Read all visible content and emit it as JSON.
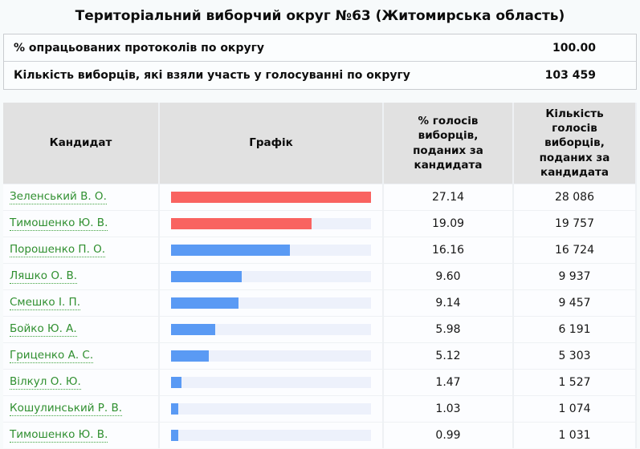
{
  "page": {
    "title": "Територіальний виборчий округ №63 (Житомирська область)"
  },
  "summary": {
    "rows": [
      {
        "label": "% опрацьованих протоколів по округу",
        "value": "100.00"
      },
      {
        "label": "Кількість виборців, які взяли участь у голосуванні по округу",
        "value": "103 459"
      }
    ]
  },
  "results_table": {
    "columns": [
      {
        "label": "Кандидат"
      },
      {
        "label": "Графік"
      },
      {
        "label": "% голосів виборців, поданих за кандидата"
      },
      {
        "label": "Кількість голосів виборців, поданих за кандидата"
      }
    ],
    "rows": [
      {
        "candidate": "Зеленський В. О.",
        "percent": "27.14",
        "votes": "28 086",
        "bar_color": "red"
      },
      {
        "candidate": "Тимошенко Ю. В.",
        "percent": "19.09",
        "votes": "19 757",
        "bar_color": "red"
      },
      {
        "candidate": "Порошенко П. О.",
        "percent": "16.16",
        "votes": "16 724",
        "bar_color": "blue"
      },
      {
        "candidate": "Ляшко О. В.",
        "percent": "9.60",
        "votes": "9 937",
        "bar_color": "blue"
      },
      {
        "candidate": "Смешко І. П.",
        "percent": "9.14",
        "votes": "9 457",
        "bar_color": "blue"
      },
      {
        "candidate": "Бойко Ю. А.",
        "percent": "5.98",
        "votes": "6 191",
        "bar_color": "blue"
      },
      {
        "candidate": "Гриценко А. С.",
        "percent": "5.12",
        "votes": "5 303",
        "bar_color": "blue"
      },
      {
        "candidate": "Вілкул О. Ю.",
        "percent": "1.47",
        "votes": "1 527",
        "bar_color": "blue"
      },
      {
        "candidate": "Кошулинський Р. В.",
        "percent": "1.03",
        "votes": "1 074",
        "bar_color": "blue"
      },
      {
        "candidate": "Тимошенко Ю. В.",
        "percent": "0.99",
        "votes": "1 031",
        "bar_color": "blue"
      }
    ]
  },
  "chart_data": {
    "type": "bar",
    "orientation": "horizontal",
    "categories": [
      "Зеленський В. О.",
      "Тимошенко Ю. В.",
      "Порошенко П. О.",
      "Ляшко О. В.",
      "Смешко І. П.",
      "Бойко Ю. А.",
      "Гриценко А. С.",
      "Вілкул О. Ю.",
      "Кошулинський Р. В.",
      "Тимошенко Ю. В."
    ],
    "values": [
      27.14,
      19.09,
      16.16,
      9.6,
      9.14,
      5.98,
      5.12,
      1.47,
      1.03,
      0.99
    ],
    "title": "Графік",
    "note": "bars scaled relative to leader value 27.14",
    "bar_colors": [
      "red",
      "red",
      "blue",
      "blue",
      "blue",
      "blue",
      "blue",
      "blue",
      "blue",
      "blue"
    ]
  },
  "colors": {
    "bar_red": "#f96360",
    "bar_blue": "#5a9af4",
    "bar_track": "#edf1fb",
    "candidate_link": "#2f8f2f",
    "header_bg": "#e1e1e1"
  }
}
